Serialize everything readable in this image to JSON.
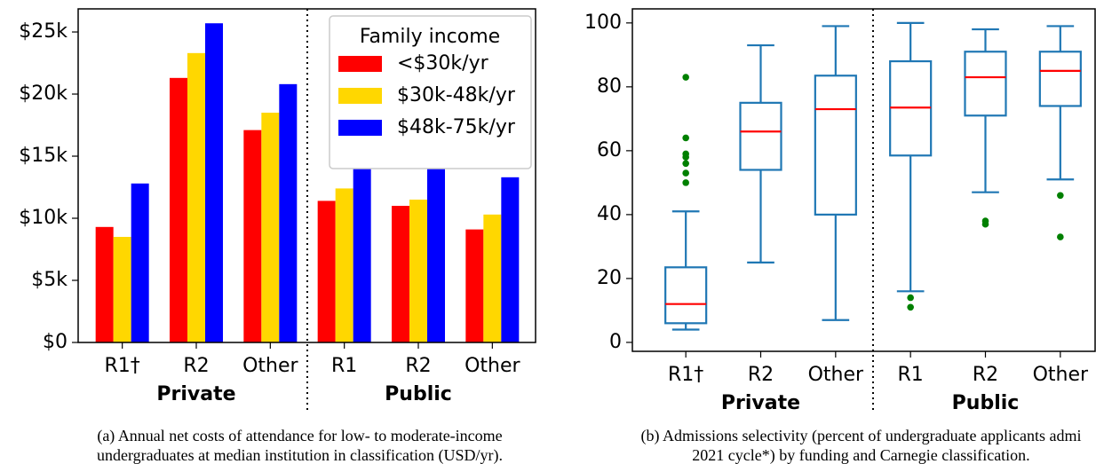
{
  "chart_data": [
    {
      "type": "bar",
      "categories": [
        "R1†",
        "R2",
        "Other",
        "R1",
        "R2",
        "Other"
      ],
      "groups": [
        "Private",
        "Public"
      ],
      "series": [
        {
          "name": "<$30k/yr",
          "color": "#ff0000",
          "values": [
            9300,
            21300,
            17100,
            11400,
            11000,
            9100
          ]
        },
        {
          "name": "$30k-48k/yr",
          "color": "#ffd700",
          "values": [
            8500,
            23300,
            18500,
            12400,
            11500,
            10300
          ]
        },
        {
          "name": "$48k-75k/yr",
          "color": "#0000ff",
          "values": [
            12800,
            25700,
            20800,
            15400,
            14200,
            13300
          ]
        }
      ],
      "legend_title": "Family income",
      "legend": "upper right",
      "ylim": [
        0,
        26860
      ],
      "yticks": [
        {
          "value": 0,
          "label": "$0"
        },
        {
          "value": 5000,
          "label": "$5k"
        },
        {
          "value": 10000,
          "label": "$10k"
        },
        {
          "value": 15000,
          "label": "$15k"
        },
        {
          "value": 20000,
          "label": "$20k"
        },
        {
          "value": 25000,
          "label": "$25k"
        }
      ],
      "caption": [
        "(a)  Annual net costs of attendance for low- to moderate-income",
        "undergraduates at median institution in classification (USD/yr)."
      ]
    },
    {
      "type": "box",
      "categories": [
        "R1†",
        "R2",
        "Other",
        "R1",
        "R2",
        "Other"
      ],
      "groups": [
        "Private",
        "Public"
      ],
      "color": "#1f77b4",
      "median_color": "#ff0000",
      "outlier_color": "#008000",
      "boxes": [
        {
          "whisker_low": 4,
          "q1": 6,
          "median": 12,
          "q3": 23.5,
          "whisker_high": 41,
          "outliers": [
            50,
            53,
            56,
            58,
            59,
            64,
            83
          ]
        },
        {
          "whisker_low": 25,
          "q1": 54,
          "median": 66,
          "q3": 75,
          "whisker_high": 93,
          "outliers": []
        },
        {
          "whisker_low": 7,
          "q1": 40,
          "median": 73,
          "q3": 83.5,
          "whisker_high": 99,
          "outliers": []
        },
        {
          "whisker_low": 16,
          "q1": 58.5,
          "median": 73.5,
          "q3": 88,
          "whisker_high": 100,
          "outliers": [
            11,
            14
          ]
        },
        {
          "whisker_low": 47,
          "q1": 71,
          "median": 83,
          "q3": 91,
          "whisker_high": 98,
          "outliers": [
            37,
            38
          ]
        },
        {
          "whisker_low": 51,
          "q1": 74,
          "median": 85,
          "q3": 91,
          "whisker_high": 99,
          "outliers": [
            33,
            46
          ]
        }
      ],
      "ylim": [
        -2.8,
        104.4
      ],
      "yticks": [
        0,
        20,
        40,
        60,
        80,
        100
      ],
      "caption": [
        "(b)  Admissions selectivity (percent of undergraduate applicants admi",
        "2021 cycle*) by funding and Carnegie classification."
      ]
    }
  ]
}
